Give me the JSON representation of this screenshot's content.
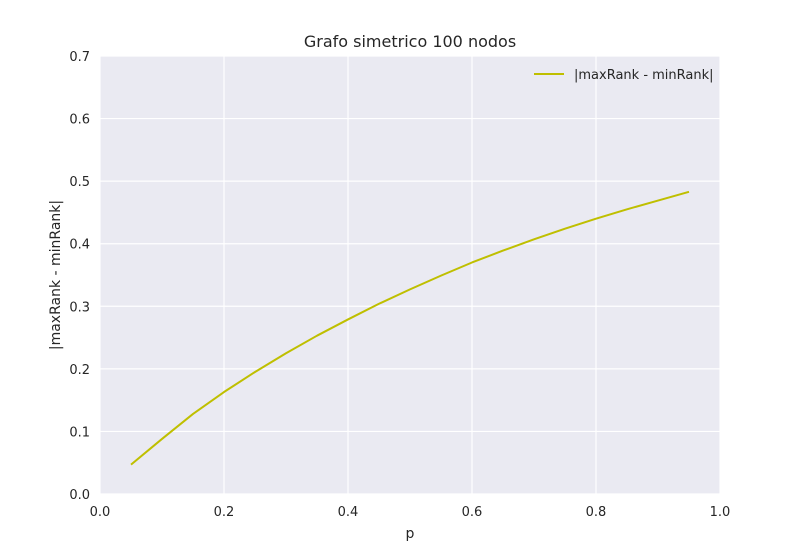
{
  "chart_data": {
    "type": "line",
    "title": "Grafo simetrico 100 nodos",
    "xlabel": "p",
    "ylabel": "|maxRank - minRank|",
    "xlim": [
      0.0,
      1.0
    ],
    "ylim": [
      0.0,
      0.7
    ],
    "xticks": [
      0.0,
      0.2,
      0.4,
      0.6,
      0.8,
      1.0
    ],
    "xtick_labels": [
      "0.0",
      "0.2",
      "0.4",
      "0.6",
      "0.8",
      "1.0"
    ],
    "yticks": [
      0.0,
      0.1,
      0.2,
      0.3,
      0.4,
      0.5,
      0.6,
      0.7
    ],
    "ytick_labels": [
      "0.0",
      "0.1",
      "0.2",
      "0.3",
      "0.4",
      "0.5",
      "0.6",
      "0.7"
    ],
    "grid": true,
    "legend_position": "top-right",
    "background_color": "#eaeaf2",
    "grid_color": "#ffffff",
    "series": [
      {
        "name": "|maxRank - minRank|",
        "color": "#bfbf00",
        "x": [
          0.05,
          0.1,
          0.15,
          0.2,
          0.25,
          0.3,
          0.35,
          0.4,
          0.45,
          0.5,
          0.55,
          0.6,
          0.65,
          0.7,
          0.75,
          0.8,
          0.85,
          0.9,
          0.95
        ],
        "y": [
          0.047,
          0.088,
          0.128,
          0.163,
          0.195,
          0.225,
          0.253,
          0.279,
          0.304,
          0.327,
          0.349,
          0.37,
          0.389,
          0.407,
          0.424,
          0.44,
          0.455,
          0.469,
          0.483
        ]
      }
    ]
  }
}
